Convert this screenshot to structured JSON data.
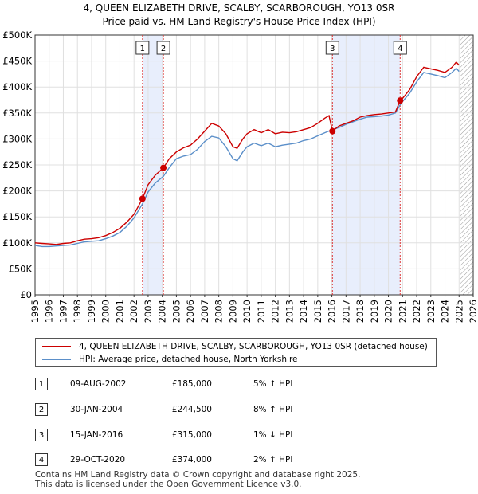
{
  "chart_data": {
    "type": "line",
    "title": "4, QUEEN ELIZABETH DRIVE, SCALBY, SCARBOROUGH, YO13 0SR",
    "subtitle": "Price paid vs. HM Land Registry's House Price Index (HPI)",
    "xlim": [
      1995,
      2026
    ],
    "ylim": [
      0,
      500000
    ],
    "x_ticks": [
      "1995",
      "1996",
      "1997",
      "1998",
      "1999",
      "2000",
      "2001",
      "2002",
      "2003",
      "2004",
      "2005",
      "2006",
      "2007",
      "2008",
      "2009",
      "2010",
      "2011",
      "2012",
      "2013",
      "2014",
      "2015",
      "2016",
      "2017",
      "2018",
      "2019",
      "2020",
      "2021",
      "2022",
      "2023",
      "2024",
      "2025",
      "2026"
    ],
    "y_ticks": [
      {
        "value": 0,
        "label": "£0"
      },
      {
        "value": 50000,
        "label": "£50K"
      },
      {
        "value": 100000,
        "label": "£100K"
      },
      {
        "value": 150000,
        "label": "£150K"
      },
      {
        "value": 200000,
        "label": "£200K"
      },
      {
        "value": 250000,
        "label": "£250K"
      },
      {
        "value": 300000,
        "label": "£300K"
      },
      {
        "value": 350000,
        "label": "£350K"
      },
      {
        "value": 400000,
        "label": "£400K"
      },
      {
        "value": 450000,
        "label": "£450K"
      },
      {
        "value": 500000,
        "label": "£500K"
      }
    ],
    "shaded_ranges": [
      [
        2002.6,
        2004.08
      ],
      [
        2016.04,
        2020.83
      ]
    ],
    "future_hatch_from": 2025.1,
    "series": [
      {
        "name": "4, QUEEN ELIZABETH DRIVE, SCALBY, SCARBOROUGH, YO13 0SR (detached house)",
        "color": "#cc0000",
        "points": [
          [
            1995,
            100000
          ],
          [
            1995.5,
            99000
          ],
          [
            1996,
            98000
          ],
          [
            1996.5,
            97000
          ],
          [
            1997,
            99000
          ],
          [
            1997.5,
            100000
          ],
          [
            1998,
            104000
          ],
          [
            1998.5,
            107000
          ],
          [
            1999,
            108000
          ],
          [
            1999.5,
            110000
          ],
          [
            2000,
            114000
          ],
          [
            2000.5,
            120000
          ],
          [
            2001,
            128000
          ],
          [
            2001.5,
            140000
          ],
          [
            2002,
            155000
          ],
          [
            2002.6,
            185000
          ],
          [
            2003,
            212000
          ],
          [
            2003.5,
            230000
          ],
          [
            2004.08,
            244500
          ],
          [
            2004.5,
            262000
          ],
          [
            2005,
            275000
          ],
          [
            2005.5,
            283000
          ],
          [
            2006,
            288000
          ],
          [
            2006.5,
            300000
          ],
          [
            2007,
            315000
          ],
          [
            2007.5,
            330000
          ],
          [
            2008,
            325000
          ],
          [
            2008.5,
            310000
          ],
          [
            2009,
            285000
          ],
          [
            2009.3,
            282000
          ],
          [
            2009.7,
            300000
          ],
          [
            2010,
            310000
          ],
          [
            2010.5,
            318000
          ],
          [
            2011,
            312000
          ],
          [
            2011.5,
            318000
          ],
          [
            2012,
            310000
          ],
          [
            2012.5,
            313000
          ],
          [
            2013,
            312000
          ],
          [
            2013.5,
            314000
          ],
          [
            2014,
            318000
          ],
          [
            2014.5,
            322000
          ],
          [
            2015,
            330000
          ],
          [
            2015.5,
            340000
          ],
          [
            2015.8,
            345000
          ],
          [
            2016.04,
            315000
          ],
          [
            2016.5,
            325000
          ],
          [
            2017,
            330000
          ],
          [
            2017.5,
            335000
          ],
          [
            2018,
            342000
          ],
          [
            2018.5,
            345000
          ],
          [
            2019,
            347000
          ],
          [
            2019.5,
            348000
          ],
          [
            2020,
            350000
          ],
          [
            2020.5,
            352000
          ],
          [
            2020.83,
            374000
          ],
          [
            2021,
            378000
          ],
          [
            2021.5,
            395000
          ],
          [
            2022,
            420000
          ],
          [
            2022.5,
            438000
          ],
          [
            2023,
            435000
          ],
          [
            2023.5,
            432000
          ],
          [
            2024,
            428000
          ],
          [
            2024.5,
            438000
          ],
          [
            2024.8,
            448000
          ],
          [
            2025,
            442000
          ]
        ]
      },
      {
        "name": "HPI: Average price, detached house, North Yorkshire",
        "color": "#5b8fc9",
        "points": [
          [
            1995,
            95000
          ],
          [
            1995.5,
            93000
          ],
          [
            1996,
            93000
          ],
          [
            1996.5,
            94000
          ],
          [
            1997,
            95000
          ],
          [
            1997.5,
            96000
          ],
          [
            1998,
            99000
          ],
          [
            1998.5,
            102000
          ],
          [
            1999,
            103000
          ],
          [
            1999.5,
            104000
          ],
          [
            2000,
            108000
          ],
          [
            2000.5,
            113000
          ],
          [
            2001,
            120000
          ],
          [
            2001.5,
            132000
          ],
          [
            2002,
            148000
          ],
          [
            2002.6,
            175000
          ],
          [
            2003,
            198000
          ],
          [
            2003.5,
            215000
          ],
          [
            2004.08,
            228000
          ],
          [
            2004.5,
            245000
          ],
          [
            2005,
            262000
          ],
          [
            2005.5,
            267000
          ],
          [
            2006,
            270000
          ],
          [
            2006.5,
            280000
          ],
          [
            2007,
            295000
          ],
          [
            2007.5,
            305000
          ],
          [
            2008,
            302000
          ],
          [
            2008.5,
            285000
          ],
          [
            2009,
            262000
          ],
          [
            2009.3,
            258000
          ],
          [
            2009.7,
            275000
          ],
          [
            2010,
            285000
          ],
          [
            2010.5,
            292000
          ],
          [
            2011,
            287000
          ],
          [
            2011.5,
            292000
          ],
          [
            2012,
            285000
          ],
          [
            2012.5,
            288000
          ],
          [
            2013,
            290000
          ],
          [
            2013.5,
            292000
          ],
          [
            2014,
            297000
          ],
          [
            2014.5,
            300000
          ],
          [
            2015,
            306000
          ],
          [
            2015.5,
            312000
          ],
          [
            2016.04,
            318000
          ],
          [
            2016.5,
            322000
          ],
          [
            2017,
            328000
          ],
          [
            2017.5,
            333000
          ],
          [
            2018,
            338000
          ],
          [
            2018.5,
            342000
          ],
          [
            2019,
            343000
          ],
          [
            2019.5,
            344000
          ],
          [
            2020,
            346000
          ],
          [
            2020.5,
            350000
          ],
          [
            2020.83,
            366000
          ],
          [
            2021,
            372000
          ],
          [
            2021.5,
            388000
          ],
          [
            2022,
            410000
          ],
          [
            2022.5,
            428000
          ],
          [
            2023,
            425000
          ],
          [
            2023.5,
            422000
          ],
          [
            2024,
            418000
          ],
          [
            2024.5,
            428000
          ],
          [
            2024.8,
            436000
          ],
          [
            2025,
            430000
          ]
        ]
      }
    ],
    "sales_markers": [
      {
        "label": "1",
        "x": 2002.6,
        "y": 185000
      },
      {
        "label": "2",
        "x": 2004.08,
        "y": 244500
      },
      {
        "label": "3",
        "x": 2016.04,
        "y": 315000
      },
      {
        "label": "4",
        "x": 2020.83,
        "y": 374000
      }
    ]
  },
  "sales": [
    {
      "num": "1",
      "date": "09-AUG-2002",
      "price": "£185,000",
      "hpi": "5% ↑ HPI"
    },
    {
      "num": "2",
      "date": "30-JAN-2004",
      "price": "£244,500",
      "hpi": "8% ↑ HPI"
    },
    {
      "num": "3",
      "date": "15-JAN-2016",
      "price": "£315,000",
      "hpi": "1% ↓ HPI"
    },
    {
      "num": "4",
      "date": "29-OCT-2020",
      "price": "£374,000",
      "hpi": "2% ↑ HPI"
    }
  ],
  "footer": {
    "line1": "Contains HM Land Registry data © Crown copyright and database right 2025.",
    "line2": "This data is licensed under the Open Government Licence v3.0."
  }
}
